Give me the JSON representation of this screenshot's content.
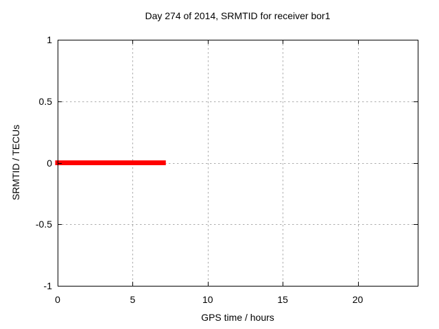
{
  "chart_data": {
    "type": "line",
    "title": "Day 274 of 2014, SRMTID for receiver bor1",
    "xlabel": "GPS time / hours",
    "ylabel": "SRMTID / TECUs",
    "xlim": [
      0,
      24
    ],
    "ylim": [
      -1,
      1
    ],
    "xticks": [
      0,
      5,
      10,
      15,
      20
    ],
    "yticks": [
      -1,
      -0.5,
      0,
      0.5,
      1
    ],
    "grid": "dotted",
    "grid_color": "#ababab",
    "axis_color": "#000000",
    "background_color": "#ffffff",
    "legend": "none",
    "series": [
      {
        "name": "SRMTID",
        "color": "#ff0000",
        "linewidth": 7,
        "points": [
          [
            0,
            0
          ],
          [
            7.05,
            0
          ]
        ]
      }
    ]
  }
}
